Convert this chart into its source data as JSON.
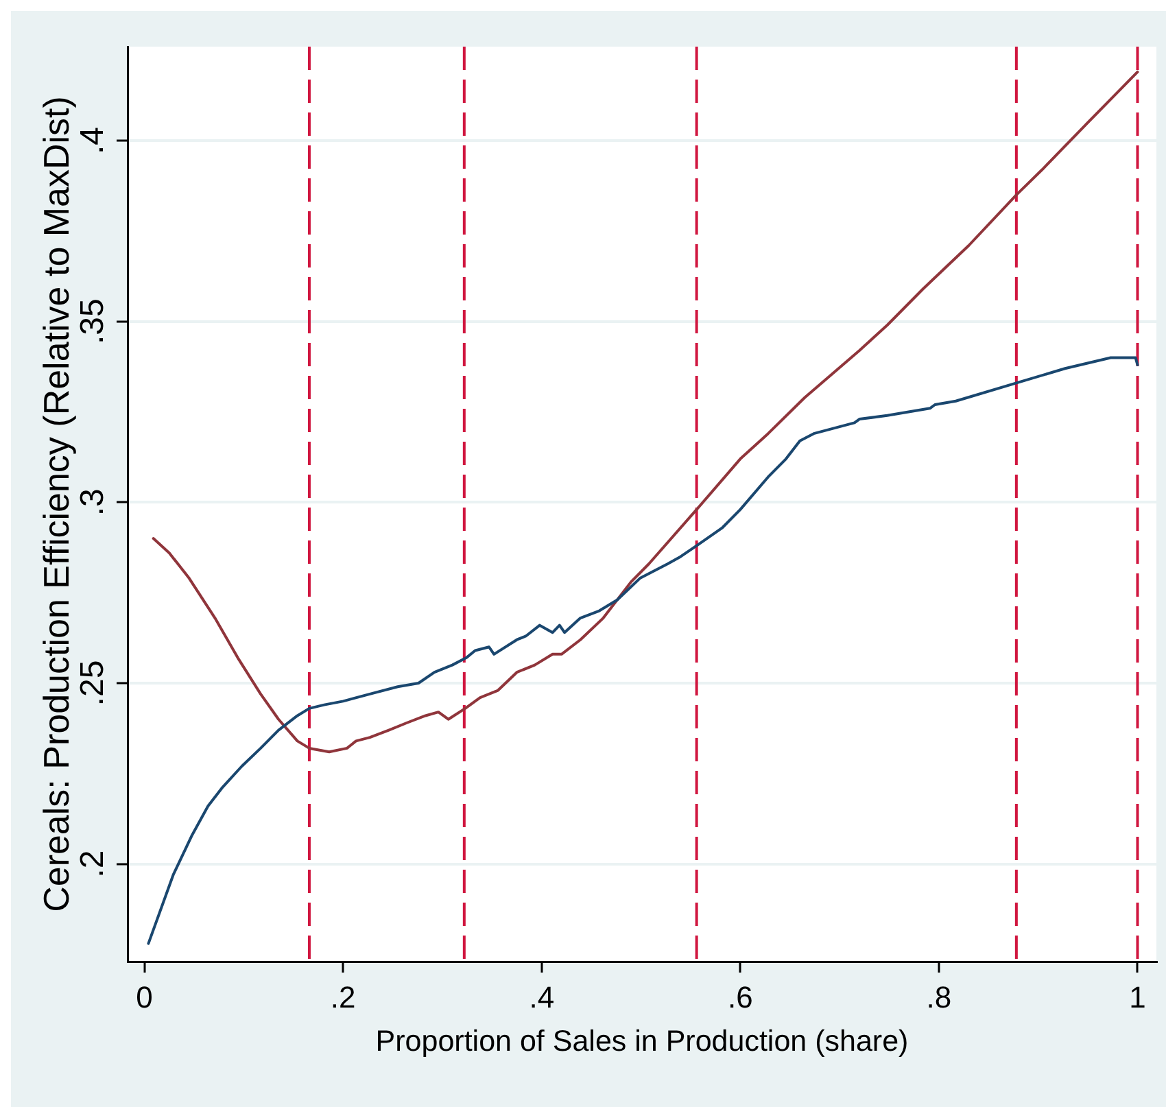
{
  "chart_data": {
    "type": "line",
    "xlabel": "Proportion of Sales in Production (share)",
    "ylabel": "Cereals: Production Efficiency (Relative to MaxDist)",
    "xlim": [
      -0.017,
      1.019
    ],
    "ylim": [
      0.173,
      0.426
    ],
    "xticks": [
      0,
      {
        "value": 0.2,
        "label": ".2"
      },
      {
        "value": 0.4,
        "label": ".4"
      },
      {
        "value": 0.6,
        "label": ".6"
      },
      {
        "value": 0.8,
        "label": ".8"
      },
      1
    ],
    "yticks": [
      {
        "value": 0.2,
        "label": ".2"
      },
      {
        "value": 0.25,
        "label": ".25"
      },
      {
        "value": 0.3,
        "label": ".3"
      },
      {
        "value": 0.35,
        "label": ".35"
      },
      {
        "value": 0.4,
        "label": ".4"
      }
    ],
    "grid": "y",
    "legend": false,
    "series": [
      {
        "color": "#1a476f",
        "x": [
          0.004,
          0.029,
          0.048,
          0.064,
          0.078,
          0.098,
          0.117,
          0.135,
          0.154,
          0.166,
          0.181,
          0.2,
          0.227,
          0.255,
          0.276,
          0.292,
          0.31,
          0.324,
          0.333,
          0.347,
          0.352,
          0.375,
          0.384,
          0.398,
          0.411,
          0.418,
          0.423,
          0.439,
          0.458,
          0.476,
          0.499,
          0.527,
          0.54,
          0.556,
          0.582,
          0.6,
          0.628,
          0.646,
          0.66,
          0.674,
          0.715,
          0.72,
          0.748,
          0.791,
          0.796,
          0.817,
          0.878,
          0.927,
          0.973,
          0.998,
          1.0
        ],
        "values": [
          0.178,
          0.197,
          0.208,
          0.216,
          0.221,
          0.227,
          0.232,
          0.237,
          0.241,
          0.243,
          0.244,
          0.245,
          0.247,
          0.249,
          0.25,
          0.253,
          0.255,
          0.257,
          0.259,
          0.26,
          0.258,
          0.262,
          0.263,
          0.266,
          0.264,
          0.266,
          0.264,
          0.268,
          0.27,
          0.273,
          0.279,
          0.283,
          0.285,
          0.288,
          0.293,
          0.298,
          0.307,
          0.312,
          0.317,
          0.319,
          0.322,
          0.323,
          0.324,
          0.326,
          0.327,
          0.328,
          0.333,
          0.337,
          0.34,
          0.34,
          0.338
        ]
      },
      {
        "color": "#90353b",
        "x": [
          0.009,
          0.025,
          0.045,
          0.071,
          0.094,
          0.117,
          0.135,
          0.154,
          0.166,
          0.186,
          0.204,
          0.213,
          0.227,
          0.246,
          0.264,
          0.283,
          0.296,
          0.306,
          0.323,
          0.338,
          0.356,
          0.375,
          0.393,
          0.411,
          0.42,
          0.439,
          0.462,
          0.49,
          0.508,
          0.556,
          0.6,
          0.628,
          0.665,
          0.72,
          0.748,
          0.784,
          0.83,
          0.878,
          0.904,
          0.95,
          1.0
        ],
        "values": [
          0.29,
          0.286,
          0.279,
          0.268,
          0.257,
          0.247,
          0.24,
          0.234,
          0.232,
          0.231,
          0.232,
          0.234,
          0.235,
          0.237,
          0.239,
          0.241,
          0.242,
          0.24,
          0.243,
          0.246,
          0.248,
          0.253,
          0.255,
          0.258,
          0.258,
          0.262,
          0.268,
          0.278,
          0.283,
          0.298,
          0.312,
          0.319,
          0.329,
          0.342,
          0.349,
          0.359,
          0.371,
          0.385,
          0.392,
          0.405,
          0.419
        ]
      }
    ],
    "ref_lines": [
      {
        "axis": "x",
        "value": 0.166,
        "color": "#d0163f",
        "line_style": "dashed"
      },
      {
        "axis": "x",
        "value": 0.322,
        "color": "#d0163f",
        "line_style": "dashed"
      },
      {
        "axis": "x",
        "value": 0.556,
        "color": "#d0163f",
        "line_style": "dashed"
      },
      {
        "axis": "x",
        "value": 0.878,
        "color": "#d0163f",
        "line_style": "dashed"
      },
      {
        "axis": "x",
        "value": 1,
        "color": "#d0163f",
        "line_style": "dashed"
      }
    ]
  }
}
